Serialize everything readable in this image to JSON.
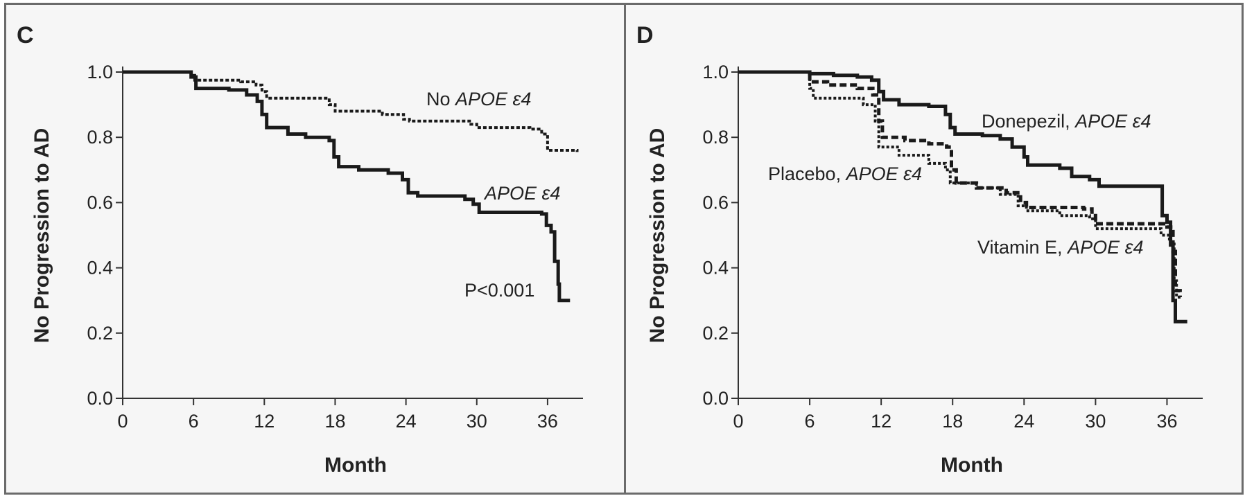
{
  "chart_data": [
    {
      "type": "line",
      "panel_label": "C",
      "xlabel": "Month",
      "ylabel": "No Progression to AD",
      "xlim": [
        0,
        39
      ],
      "ylim": [
        0,
        1.0
      ],
      "x_ticks": [
        "0",
        "6",
        "12",
        "18",
        "24",
        "30",
        "36"
      ],
      "y_ticks": [
        "0.0",
        "0.2",
        "0.4",
        "0.6",
        "0.8",
        "1.0"
      ],
      "annotation": "P<0.001",
      "series": [
        {
          "name": "No APOE ε4",
          "label_plain": "No ",
          "label_italic": "APOE ε4",
          "style": "dashed",
          "points": [
            [
              0,
              1.0
            ],
            [
              5.6,
              1.0
            ],
            [
              5.8,
              0.99
            ],
            [
              6.1,
              0.975
            ],
            [
              10,
              0.97
            ],
            [
              11.3,
              0.96
            ],
            [
              11.8,
              0.94
            ],
            [
              12.2,
              0.92
            ],
            [
              17.5,
              0.9
            ],
            [
              18,
              0.88
            ],
            [
              22,
              0.87
            ],
            [
              23.8,
              0.855
            ],
            [
              24.3,
              0.85
            ],
            [
              29.5,
              0.84
            ],
            [
              30,
              0.83
            ],
            [
              34.5,
              0.825
            ],
            [
              35.5,
              0.81
            ],
            [
              36,
              0.76
            ],
            [
              38.5,
              0.755
            ]
          ]
        },
        {
          "name": "APOE ε4",
          "label_plain": "",
          "label_italic": "APOE ε4",
          "style": "solid",
          "points": [
            [
              0,
              1.0
            ],
            [
              5.6,
              1.0
            ],
            [
              5.8,
              0.985
            ],
            [
              6.2,
              0.95
            ],
            [
              9,
              0.945
            ],
            [
              10.5,
              0.93
            ],
            [
              11.4,
              0.91
            ],
            [
              11.8,
              0.87
            ],
            [
              12.2,
              0.83
            ],
            [
              14,
              0.81
            ],
            [
              15.5,
              0.8
            ],
            [
              17.5,
              0.79
            ],
            [
              17.9,
              0.74
            ],
            [
              18.3,
              0.71
            ],
            [
              20,
              0.7
            ],
            [
              22.5,
              0.69
            ],
            [
              23.7,
              0.67
            ],
            [
              24.2,
              0.63
            ],
            [
              25,
              0.62
            ],
            [
              29,
              0.61
            ],
            [
              29.7,
              0.595
            ],
            [
              30.2,
              0.57
            ],
            [
              35.5,
              0.565
            ],
            [
              35.9,
              0.53
            ],
            [
              36.3,
              0.51
            ],
            [
              36.6,
              0.42
            ],
            [
              36.9,
              0.35
            ],
            [
              37,
              0.3
            ],
            [
              37.9,
              0.3
            ]
          ]
        }
      ]
    },
    {
      "type": "line",
      "panel_label": "D",
      "xlabel": "Month",
      "ylabel": "No Progression to AD",
      "xlim": [
        0,
        39
      ],
      "ylim": [
        0,
        1.0
      ],
      "x_ticks": [
        "0",
        "6",
        "12",
        "18",
        "24",
        "30",
        "36"
      ],
      "y_ticks": [
        "0.0",
        "0.2",
        "0.4",
        "0.6",
        "0.8",
        "1.0"
      ],
      "series": [
        {
          "name": "Donepezil, APOE ε4",
          "label_plain": "Donepezil, ",
          "label_italic": "APOE ε4",
          "style": "solid",
          "points": [
            [
              0,
              1.0
            ],
            [
              6,
              0.995
            ],
            [
              8,
              0.99
            ],
            [
              10,
              0.985
            ],
            [
              11.2,
              0.975
            ],
            [
              11.8,
              0.94
            ],
            [
              12.2,
              0.915
            ],
            [
              13.5,
              0.9
            ],
            [
              16,
              0.895
            ],
            [
              17.4,
              0.87
            ],
            [
              17.8,
              0.83
            ],
            [
              18.2,
              0.81
            ],
            [
              20.5,
              0.805
            ],
            [
              22,
              0.795
            ],
            [
              23,
              0.77
            ],
            [
              24,
              0.74
            ],
            [
              24.3,
              0.715
            ],
            [
              27,
              0.705
            ],
            [
              28,
              0.68
            ],
            [
              29.5,
              0.67
            ],
            [
              30.3,
              0.65
            ],
            [
              34,
              0.65
            ],
            [
              35.3,
              0.65
            ],
            [
              35.6,
              0.56
            ],
            [
              36,
              0.54
            ],
            [
              36.3,
              0.47
            ],
            [
              36.5,
              0.3
            ],
            [
              36.7,
              0.235
            ],
            [
              37.7,
              0.235
            ]
          ]
        },
        {
          "name": "Placebo, APOE ε4",
          "label_plain": "Placebo, ",
          "label_italic": "APOE ε4",
          "style": "dashed-fine",
          "points": [
            [
              0,
              1.0
            ],
            [
              5.8,
              1.0
            ],
            [
              6,
              0.95
            ],
            [
              6.3,
              0.92
            ],
            [
              10.5,
              0.9
            ],
            [
              11.5,
              0.85
            ],
            [
              11.8,
              0.77
            ],
            [
              13.5,
              0.745
            ],
            [
              16,
              0.72
            ],
            [
              17.4,
              0.7
            ],
            [
              17.8,
              0.66
            ],
            [
              20,
              0.645
            ],
            [
              22,
              0.625
            ],
            [
              23.5,
              0.59
            ],
            [
              24.2,
              0.575
            ],
            [
              27,
              0.56
            ],
            [
              29.5,
              0.55
            ],
            [
              30,
              0.52
            ],
            [
              35.5,
              0.5
            ],
            [
              36.2,
              0.48
            ],
            [
              36.6,
              0.36
            ],
            [
              36.8,
              0.31
            ],
            [
              37.3,
              0.31
            ]
          ]
        },
        {
          "name": "Vitamin E, APOE ε4",
          "label_plain": "Vitamin E, ",
          "label_italic": "APOE ε4",
          "style": "dashed-bold",
          "points": [
            [
              0,
              1.0
            ],
            [
              5.8,
              1.0
            ],
            [
              6,
              0.97
            ],
            [
              7.5,
              0.96
            ],
            [
              10,
              0.95
            ],
            [
              11.3,
              0.93
            ],
            [
              11.8,
              0.85
            ],
            [
              12.1,
              0.8
            ],
            [
              14,
              0.79
            ],
            [
              16,
              0.78
            ],
            [
              17.5,
              0.77
            ],
            [
              17.9,
              0.7
            ],
            [
              18.3,
              0.66
            ],
            [
              20,
              0.645
            ],
            [
              22.5,
              0.63
            ],
            [
              23.7,
              0.6
            ],
            [
              24.2,
              0.585
            ],
            [
              29,
              0.58
            ],
            [
              29.7,
              0.56
            ],
            [
              30,
              0.535
            ],
            [
              35,
              0.535
            ],
            [
              36,
              0.525
            ],
            [
              36.5,
              0.45
            ],
            [
              36.7,
              0.33
            ],
            [
              37.1,
              0.31
            ]
          ]
        }
      ]
    }
  ]
}
